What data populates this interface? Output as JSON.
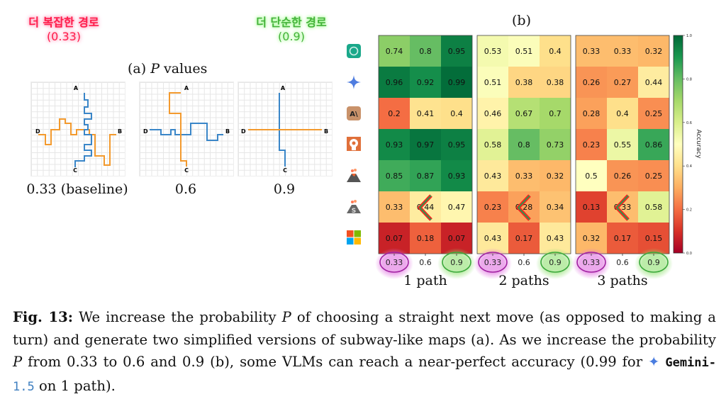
{
  "annotations": {
    "complex": {
      "text": "더 복잡한 경로",
      "value": "(0.33)",
      "color": "#ff1a4a"
    },
    "simple": {
      "text": "더 단순한 경로",
      "value": "(0.9)",
      "color": "#44b23a"
    }
  },
  "panel_a": {
    "title_prefix": "(a)",
    "title_var": "P",
    "title_suffix": "values",
    "maps": [
      {
        "label": "0.33 (baseline)",
        "nodes": [
          "A",
          "B",
          "C",
          "D"
        ]
      },
      {
        "label": "0.6",
        "nodes": [
          "A",
          "B",
          "C",
          "D"
        ]
      },
      {
        "label": "0.9",
        "nodes": [
          "A",
          "B",
          "C",
          "D"
        ]
      }
    ],
    "line_colors": {
      "blue": "#3a86c8",
      "orange": "#f39a2e"
    }
  },
  "panel_b": {
    "title": "(b)"
  },
  "models": [
    {
      "icon": "chatgpt-icon"
    },
    {
      "icon": "gemini-icon"
    },
    {
      "icon": "anthropic-icon"
    },
    {
      "icon": "head-gear-icon"
    },
    {
      "icon": "volcano-icon"
    },
    {
      "icon": "volcano-s-icon"
    },
    {
      "icon": "microsoft-icon"
    }
  ],
  "chart_data": {
    "type": "heatmap",
    "title": "(b)",
    "colormap": "RdYlGn",
    "colorbar": {
      "label": "Accuracy",
      "range": [
        0.0,
        1.0
      ],
      "ticks": [
        "0.0",
        "0.2",
        "0.4",
        "0.6",
        "0.8",
        "1.0"
      ]
    },
    "panels": [
      {
        "label": "1 path",
        "x_ticks": [
          "0.33",
          "0.6",
          "0.9"
        ],
        "values": [
          [
            0.74,
            0.8,
            0.95
          ],
          [
            0.96,
            0.92,
            0.99
          ],
          [
            0.2,
            0.41,
            0.4
          ],
          [
            0.93,
            0.97,
            0.95
          ],
          [
            0.85,
            0.87,
            0.93
          ],
          [
            0.33,
            0.44,
            0.47
          ],
          [
            0.07,
            0.18,
            0.07
          ]
        ]
      },
      {
        "label": "2 paths",
        "x_ticks": [
          "0.33",
          "0.6",
          "0.9"
        ],
        "values": [
          [
            0.53,
            0.51,
            0.4
          ],
          [
            0.51,
            0.38,
            0.38
          ],
          [
            0.46,
            0.67,
            0.7
          ],
          [
            0.58,
            0.8,
            0.73
          ],
          [
            0.43,
            0.33,
            0.32
          ],
          [
            0.23,
            0.28,
            0.34
          ],
          [
            0.43,
            0.17,
            0.43
          ]
        ]
      },
      {
        "label": "3 paths",
        "x_ticks": [
          "0.33",
          "0.6",
          "0.9"
        ],
        "values": [
          [
            0.33,
            0.33,
            0.32
          ],
          [
            0.26,
            0.27,
            0.44
          ],
          [
            0.28,
            0.4,
            0.25
          ],
          [
            0.23,
            0.55,
            0.86
          ],
          [
            0.5,
            0.26,
            0.25
          ],
          [
            0.13,
            0.33,
            0.58
          ],
          [
            0.32,
            0.17,
            0.15
          ]
        ]
      }
    ],
    "highlights": {
      "circle_033_color": "#a020a0",
      "circle_09_color": "#3aa83a",
      "arrow_row_index": 5,
      "arrow_col_index": 1
    }
  },
  "caption": {
    "fig_label": "Fig. 13:",
    "part1": " We increase the probability ",
    "var": "P",
    "part2": " of choosing a straight next move (as opposed to making a turn) and generate two simplified versions of subway-like maps (a). As we increase the probability ",
    "part3": " from 0.33 to 0.6 and 0.9 (b), some VLMs can reach a near-perfect accuracy (0.99 for ",
    "model_name": "Gemini-",
    "model_version": "1.5",
    "part4": " on 1 path)."
  }
}
